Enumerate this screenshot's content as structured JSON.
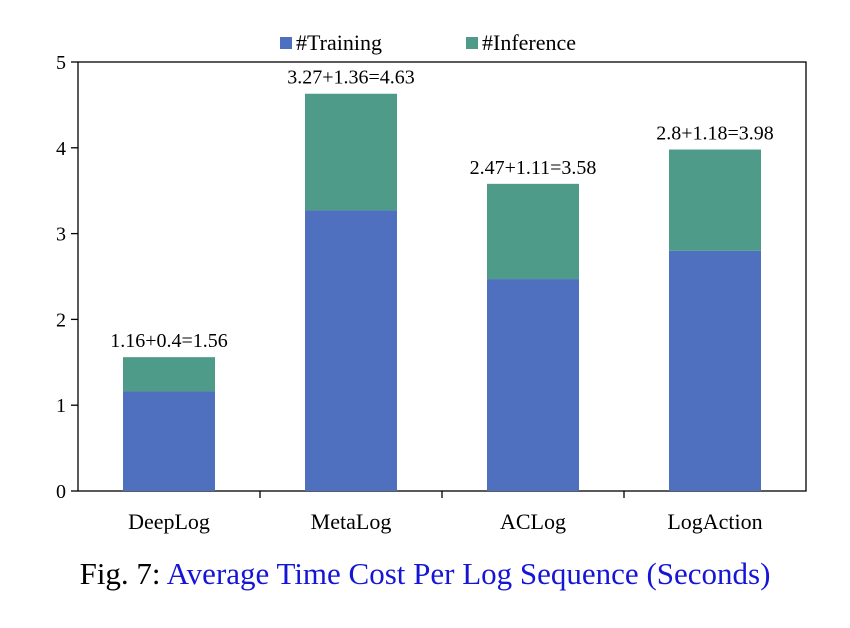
{
  "caption": {
    "label": "Fig. 7:",
    "title": "Average Time Cost Per Log Sequence (Seconds)"
  },
  "colors": {
    "training": "#4f6fbf",
    "inference": "#4e9b8a",
    "caption_title": "#1515d6"
  },
  "chart_data": {
    "type": "bar",
    "stacked": true,
    "categories": [
      "DeepLog",
      "MetaLog",
      "ACLog",
      "LogAction"
    ],
    "series": [
      {
        "name": "#Training",
        "values": [
          1.16,
          3.27,
          2.47,
          2.8
        ]
      },
      {
        "name": "#Inference",
        "values": [
          0.4,
          1.36,
          1.11,
          1.18
        ]
      }
    ],
    "data_labels": [
      "1.16+0.4=1.56",
      "3.27+1.36=4.63",
      "2.47+1.11=3.58",
      "2.8+1.18=3.98"
    ],
    "ylim": [
      0,
      5
    ],
    "yticks": [
      "0",
      "1",
      "2",
      "3",
      "4",
      "5"
    ],
    "legend_position": "top-center",
    "grid": false
  }
}
